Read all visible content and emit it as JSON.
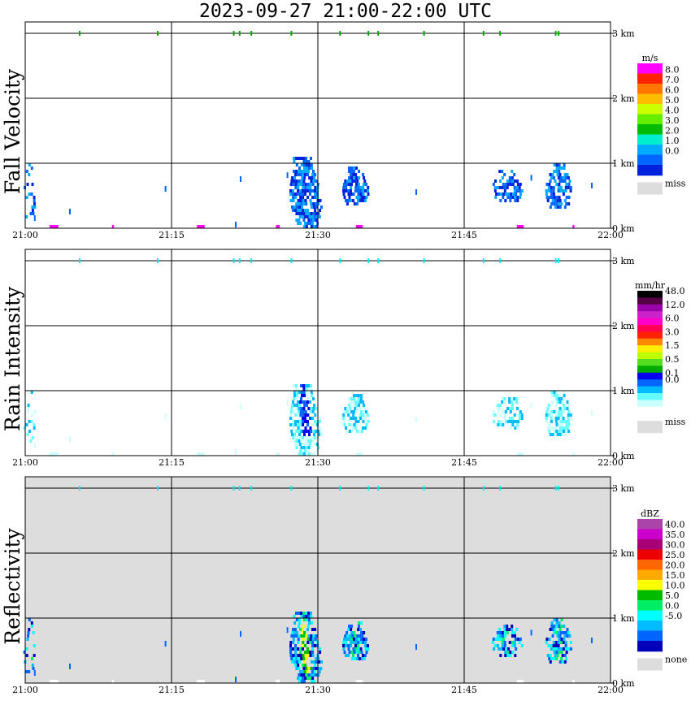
{
  "title": "2023-09-27   21:00-22:00 UTC",
  "colors": {
    "miss_gray": "#dddddd",
    "panel_bg": "#ffffff",
    "grid": "#000000",
    "marker_green": "#00aa00",
    "marker_cyan": "#00eeee"
  },
  "x_ticks": [
    "21:00",
    "21:15",
    "21:30",
    "21:45",
    "22:00"
  ],
  "y_ticks": [
    "0 km",
    "1 km",
    "2 km",
    "3 km"
  ],
  "panels": [
    {
      "ylabel": "Fall Velocity",
      "legend_unit": "m/s",
      "legend_labels": [
        "8.0",
        "7.0",
        "6.0",
        "5.0",
        "4.0",
        "3.0",
        "2.0",
        "1.0",
        "0.0"
      ],
      "legend_colors": [
        "#ff00ff",
        "#ff2200",
        "#ff7700",
        "#ffbb00",
        "#ccff00",
        "#66ee00",
        "#00bb00",
        "#00eecc",
        "#00aaff",
        "#0066ff",
        "#0022dd"
      ],
      "miss_label": "miss",
      "background": "white"
    },
    {
      "ylabel": "Rain Intensity",
      "legend_unit": "mm/hr",
      "legend_labels": [
        "48.0",
        "",
        "12.0",
        "",
        "6.0",
        "",
        "3.0",
        "",
        "1.5",
        "",
        "0.5",
        "",
        "0.1",
        "0.0"
      ],
      "legend_colors": [
        "#000000",
        "#550044",
        "#9900aa",
        "#cc22cc",
        "#ff00cc",
        "#ff0055",
        "#ff2200",
        "#ff8800",
        "#ffee00",
        "#bbff00",
        "#55dd22",
        "#00aa00",
        "#0000ee",
        "#0066ff",
        "#00bbff",
        "#66ffff",
        "#ccffff",
        "#ffffff"
      ],
      "miss_label": "miss",
      "background": "white"
    },
    {
      "ylabel": "Reflectivity",
      "legend_unit": "dBZ",
      "legend_labels": [
        "40.0",
        "35.0",
        "30.0",
        "25.0",
        "20.0",
        "15.0",
        "10.0",
        "5.0",
        "0.0",
        "-5.0"
      ],
      "legend_colors": [
        "#aa44aa",
        "#cc00cc",
        "#aa0077",
        "#ee0000",
        "#ff6600",
        "#ffaa00",
        "#ffff00",
        "#00bb00",
        "#00ee66",
        "#00ffff",
        "#00bbff",
        "#0066ff",
        "#0000bb"
      ],
      "miss_label": "none",
      "background": "gray"
    }
  ],
  "chart_data": {
    "type": "heatmap",
    "title": "2023-09-27   21:00-22:00 UTC",
    "x_range": [
      "21:00",
      "22:00"
    ],
    "y_range_km": [
      0,
      3.5
    ],
    "x_ticks": [
      "21:00",
      "21:15",
      "21:30",
      "21:45",
      "22:00"
    ],
    "y_ticks_km": [
      0,
      1,
      2,
      3
    ],
    "grid": true,
    "panels": [
      "Fall Velocity (m/s)",
      "Rain Intensity (mm/hr)",
      "Reflectivity (dBZ)"
    ],
    "echo_cells": [
      {
        "start_min": 27.0,
        "end_min": 30.0,
        "top_km": 1.1,
        "bottom_km": 0.0
      },
      {
        "start_min": 32.5,
        "end_min": 35.0,
        "top_km": 0.95,
        "bottom_km": 0.35
      },
      {
        "start_min": 48.0,
        "end_min": 51.0,
        "top_km": 0.9,
        "bottom_km": 0.4
      },
      {
        "start_min": 53.0,
        "end_min": 56.5,
        "top_km": 1.0,
        "bottom_km": 0.3
      },
      {
        "start_min": 0.0,
        "end_min": 1.5,
        "top_km": 1.0,
        "bottom_km": 0.1
      }
    ],
    "cloud_top_markers_min": [
      5.5,
      13.5,
      21.3,
      21.9,
      23.1,
      27.2,
      32.2,
      35.1,
      36.1,
      40.8,
      46.9,
      48.6,
      54.3,
      54.6
    ]
  }
}
